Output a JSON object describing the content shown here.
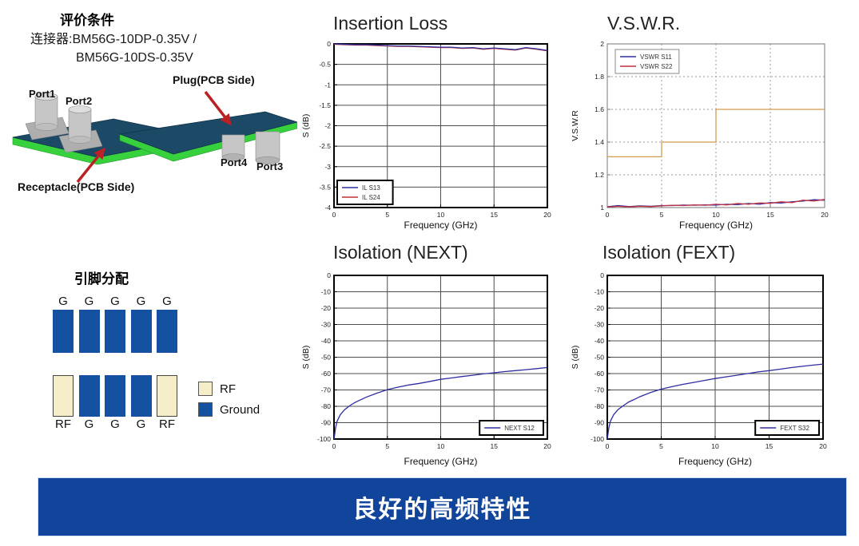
{
  "eval_section": {
    "title": "评价条件",
    "connector_lines": [
      "连接器:BM56G-10DP-0.35V /",
      "BM56G-10DS-0.35V"
    ],
    "diagram": {
      "port1": "Port1",
      "port2": "Port2",
      "port3": "Port3",
      "port4": "Port4",
      "plug_label": "Plug(PCB Side)",
      "receptacle_label": "Receptacle(PCB Side)",
      "colors": {
        "board_top": "#1c4966",
        "board_edge": "#38d13e",
        "connector_body": "#c6c6c6",
        "arrow": "#bb2025"
      }
    }
  },
  "pin_section": {
    "title": "引脚分配",
    "top_row_labels": [
      "G",
      "G",
      "G",
      "G",
      "G"
    ],
    "top_row_types": [
      "ground",
      "ground",
      "ground",
      "ground",
      "ground"
    ],
    "bottom_row_labels": [
      "RF",
      "G",
      "G",
      "G",
      "RF"
    ],
    "bottom_row_types": [
      "rf",
      "ground",
      "ground",
      "ground",
      "rf"
    ],
    "legend": [
      {
        "label": "RF",
        "type": "rf"
      },
      {
        "label": "Ground",
        "type": "ground"
      }
    ],
    "colors": {
      "ground": "#1451A0",
      "rf": "#F5EEC9",
      "rf_border": "#444444"
    }
  },
  "banner": {
    "text": "良好的高频特性",
    "background": "#11459B",
    "color": "#ffffff"
  },
  "chart_data": [
    {
      "id": "insertion-loss",
      "type": "line",
      "title": "Insertion Loss",
      "xlabel": "Frequency (GHz)",
      "ylabel": "S (dB)",
      "xlim": [
        0,
        20
      ],
      "ylim": [
        -4,
        0
      ],
      "xticks": [
        0,
        5,
        10,
        15,
        20
      ],
      "yticks": [
        0,
        -0.5,
        -1,
        -1.5,
        -2,
        -2.5,
        -3,
        -3.5,
        -4
      ],
      "grid": "solid",
      "grid_color": "#4d4d4d",
      "border_color": "#000000",
      "border_width": 2,
      "legend": {
        "position": "bottom-left",
        "border_color": "#000000",
        "border_width": 2
      },
      "series": [
        {
          "name": "IL S24",
          "color": "#c03030",
          "x": [
            0,
            1,
            2,
            3,
            4,
            5,
            6,
            7,
            8,
            9,
            10,
            11,
            12,
            13,
            14,
            15,
            16,
            17,
            18,
            19,
            20
          ],
          "y": [
            -0.01,
            -0.02,
            -0.03,
            -0.03,
            -0.04,
            -0.05,
            -0.06,
            -0.06,
            -0.07,
            -0.08,
            -0.09,
            -0.09,
            -0.11,
            -0.1,
            -0.13,
            -0.11,
            -0.13,
            -0.15,
            -0.1,
            -0.13,
            -0.17
          ]
        },
        {
          "name": "IL S13",
          "color": "#2e2ea0",
          "x": [
            0,
            1,
            2,
            3,
            4,
            5,
            6,
            7,
            8,
            9,
            10,
            11,
            12,
            13,
            14,
            15,
            16,
            17,
            18,
            19,
            20
          ],
          "y": [
            0,
            -0.01,
            -0.02,
            -0.02,
            -0.03,
            -0.04,
            -0.05,
            -0.05,
            -0.06,
            -0.07,
            -0.08,
            -0.08,
            -0.1,
            -0.09,
            -0.12,
            -0.1,
            -0.12,
            -0.14,
            -0.09,
            -0.12,
            -0.16
          ]
        }
      ],
      "legend_order": [
        "IL S13",
        "IL S24"
      ]
    },
    {
      "id": "vswr",
      "type": "line",
      "title": "V.S.W.R.",
      "xlabel": "Frequency (GHz)",
      "ylabel": "V.S.W.R",
      "xlim": [
        0,
        20
      ],
      "ylim": [
        1,
        2
      ],
      "xticks": [
        0,
        5,
        10,
        15,
        20
      ],
      "yticks": [
        1,
        1.2,
        1.4,
        1.6,
        1.8,
        2
      ],
      "grid": "dotted",
      "grid_color": "#999999",
      "border_color": "#777777",
      "border_width": 1,
      "legend": {
        "position": "top-left",
        "border_color": "#8a8a8a",
        "border_width": 1
      },
      "series": [
        {
          "name": "VSWR S11",
          "color": "#2e2ea0",
          "x": [
            0,
            1,
            2,
            3,
            4,
            5,
            6,
            7,
            8,
            9,
            10,
            11,
            12,
            13,
            14,
            15,
            16,
            17,
            18,
            19,
            20
          ],
          "y": [
            1.005,
            1.012,
            1.006,
            1.01,
            1.008,
            1.012,
            1.012,
            1.015,
            1.014,
            1.016,
            1.015,
            1.02,
            1.018,
            1.025,
            1.02,
            1.03,
            1.028,
            1.035,
            1.04,
            1.048,
            1.045
          ]
        },
        {
          "name": "VSWR S22",
          "color": "#c03040",
          "x": [
            0,
            1,
            2,
            3,
            4,
            5,
            6,
            7,
            8,
            9,
            10,
            11,
            12,
            13,
            14,
            15,
            16,
            17,
            18,
            19,
            20
          ],
          "y": [
            1.003,
            1.008,
            1.004,
            1.008,
            1.006,
            1.01,
            1.014,
            1.012,
            1.016,
            1.014,
            1.02,
            1.016,
            1.025,
            1.02,
            1.028,
            1.026,
            1.035,
            1.03,
            1.045,
            1.04,
            1.05
          ]
        },
        {
          "name": "spec-limit-step",
          "color": "#D49A4E",
          "show_in_legend": false,
          "x": [
            0,
            5,
            5,
            10,
            10,
            20
          ],
          "y": [
            1.31,
            1.31,
            1.4,
            1.4,
            1.6,
            1.6
          ]
        }
      ]
    },
    {
      "id": "isolation-next",
      "type": "line",
      "title": "Isolation (NEXT)",
      "xlabel": "Frequency (GHz)",
      "ylabel": "S (dB)",
      "xlim": [
        0,
        20
      ],
      "ylim": [
        -100,
        0
      ],
      "xticks": [
        0,
        5,
        10,
        15,
        20
      ],
      "yticks": [
        0,
        -10,
        -20,
        -30,
        -40,
        -50,
        -60,
        -70,
        -80,
        -90,
        -100
      ],
      "grid": "solid",
      "grid_color": "#4d4d4d",
      "border_color": "#000000",
      "border_width": 2,
      "legend": {
        "position": "bottom-right",
        "border_color": "#000000",
        "border_width": 2
      },
      "series": [
        {
          "name": "NEXT S12",
          "color": "#2e2ea0",
          "x": [
            0,
            0.15,
            0.3,
            0.6,
            1,
            1.5,
            2,
            2.5,
            3,
            4,
            5,
            6,
            7,
            8,
            9,
            10,
            11,
            12,
            13,
            14,
            15,
            16,
            17,
            18,
            19,
            20
          ],
          "y": [
            -100,
            -93,
            -89,
            -85,
            -82,
            -79.5,
            -77.5,
            -76,
            -74.5,
            -72,
            -69.8,
            -68.3,
            -67,
            -66,
            -64.8,
            -63.5,
            -62.7,
            -61.8,
            -61,
            -60.2,
            -59.5,
            -58.8,
            -58.2,
            -57.6,
            -57,
            -56.3
          ]
        }
      ]
    },
    {
      "id": "isolation-fext",
      "type": "line",
      "title": "Isolation (FEXT)",
      "xlabel": "Frequency (GHz)",
      "ylabel": "S (dB)",
      "xlim": [
        0,
        20
      ],
      "ylim": [
        -100,
        0
      ],
      "xticks": [
        0,
        5,
        10,
        15,
        20
      ],
      "yticks": [
        0,
        -10,
        -20,
        -30,
        -40,
        -50,
        -60,
        -70,
        -80,
        -90,
        -100
      ],
      "grid": "solid",
      "grid_color": "#4d4d4d",
      "border_color": "#000000",
      "border_width": 2,
      "legend": {
        "position": "bottom-right",
        "border_color": "#000000",
        "border_width": 2
      },
      "series": [
        {
          "name": "FEXT S32",
          "color": "#2e2ea0",
          "x": [
            0,
            0.15,
            0.3,
            0.6,
            1,
            1.5,
            2,
            2.5,
            3,
            4,
            5,
            6,
            7,
            8,
            9,
            10,
            11,
            12,
            13,
            14,
            15,
            16,
            17,
            18,
            19,
            20
          ],
          "y": [
            -100,
            -93,
            -89,
            -85,
            -82,
            -79.5,
            -77.3,
            -75.8,
            -74.2,
            -71.6,
            -69.5,
            -68,
            -66.6,
            -65.4,
            -64.2,
            -63,
            -62,
            -61,
            -60,
            -59,
            -58.2,
            -57.3,
            -56.4,
            -55.6,
            -54.9,
            -54.2
          ]
        }
      ]
    }
  ]
}
